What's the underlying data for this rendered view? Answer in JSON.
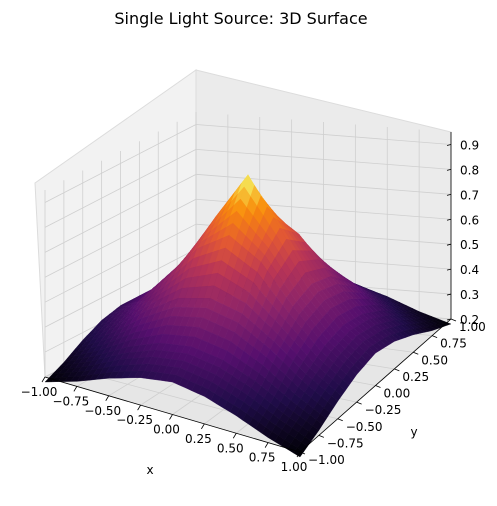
{
  "chart_data": {
    "type": "surface",
    "title": "Single Light Source: 3D Surface",
    "xlabel": "x",
    "ylabel": "y",
    "zlabel": "",
    "xlim": [
      -1.0,
      1.0
    ],
    "ylim": [
      -1.0,
      1.0
    ],
    "zlim": [
      0.2,
      0.95
    ],
    "x_ticks": [
      "−1.00",
      "−0.75",
      "−0.50",
      "−0.25",
      "0.00",
      "0.25",
      "0.50",
      "0.75",
      "1.00"
    ],
    "y_ticks": [
      "−1.00",
      "−0.75",
      "−0.50",
      "−0.25",
      "0.00",
      "0.25",
      "0.50",
      "0.75",
      "1.00"
    ],
    "z_ticks": [
      "0.2",
      "0.3",
      "0.4",
      "0.5",
      "0.6",
      "0.7",
      "0.8",
      "0.9"
    ],
    "colormap": "inferno",
    "grid": true,
    "surface": {
      "x": [
        -1.0,
        -0.75,
        -0.5,
        -0.25,
        0.0,
        0.25,
        0.5,
        0.75,
        1.0
      ],
      "y": [
        -1.0,
        -0.75,
        -0.5,
        -0.25,
        0.0,
        0.25,
        0.5,
        0.75,
        1.0
      ],
      "z": [
        [
          0.18,
          0.22,
          0.27,
          0.31,
          0.33,
          0.31,
          0.27,
          0.22,
          0.18
        ],
        [
          0.22,
          0.28,
          0.35,
          0.4,
          0.42,
          0.4,
          0.35,
          0.28,
          0.22
        ],
        [
          0.27,
          0.35,
          0.45,
          0.53,
          0.56,
          0.53,
          0.45,
          0.35,
          0.27
        ],
        [
          0.31,
          0.4,
          0.53,
          0.68,
          0.76,
          0.68,
          0.53,
          0.4,
          0.31
        ],
        [
          0.33,
          0.42,
          0.56,
          0.76,
          0.95,
          0.76,
          0.56,
          0.42,
          0.33
        ],
        [
          0.31,
          0.4,
          0.53,
          0.68,
          0.76,
          0.68,
          0.53,
          0.4,
          0.31
        ],
        [
          0.27,
          0.35,
          0.45,
          0.53,
          0.56,
          0.53,
          0.45,
          0.35,
          0.27
        ],
        [
          0.22,
          0.28,
          0.35,
          0.4,
          0.42,
          0.4,
          0.35,
          0.28,
          0.22
        ],
        [
          0.18,
          0.22,
          0.27,
          0.31,
          0.33,
          0.31,
          0.27,
          0.22,
          0.18
        ]
      ]
    }
  }
}
